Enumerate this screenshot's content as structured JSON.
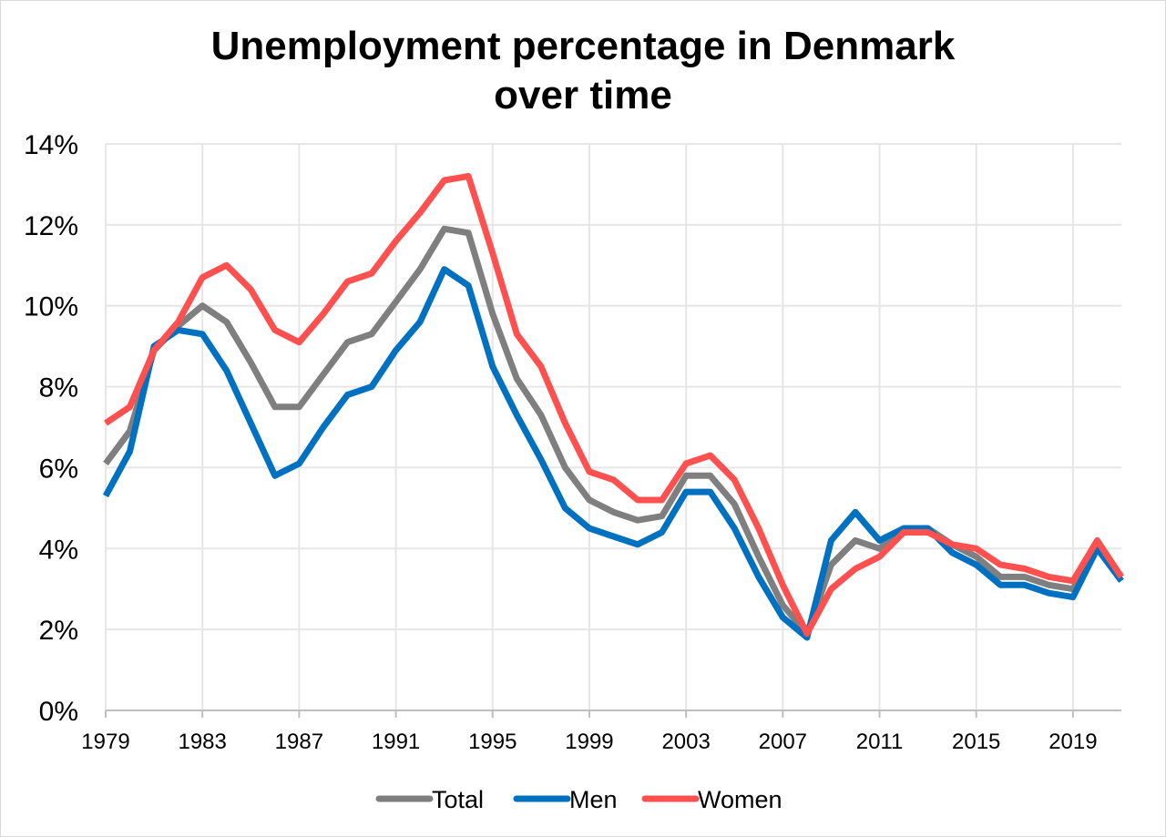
{
  "chart_data": {
    "type": "line",
    "title_lines": [
      "Unemployment percentage in Denmark",
      "over time"
    ],
    "x": [
      1979,
      1980,
      1981,
      1982,
      1983,
      1984,
      1985,
      1986,
      1987,
      1988,
      1989,
      1990,
      1991,
      1992,
      1993,
      1994,
      1995,
      1996,
      1997,
      1998,
      1999,
      2000,
      2001,
      2002,
      2003,
      2004,
      2005,
      2006,
      2007,
      2008,
      2009,
      2010,
      2011,
      2012,
      2013,
      2014,
      2015,
      2016,
      2017,
      2018,
      2019,
      2020,
      2021
    ],
    "xlim": [
      1979,
      2021
    ],
    "x_tick_labels": [
      "1979",
      "1983",
      "1987",
      "1991",
      "1995",
      "1999",
      "2003",
      "2007",
      "2011",
      "2015",
      "2019"
    ],
    "y_tick_labels": [
      "0%",
      "2%",
      "4%",
      "6%",
      "8%",
      "10%",
      "12%",
      "14%"
    ],
    "ylim": [
      0,
      14
    ],
    "grid": true,
    "legend_position": "bottom",
    "series": [
      {
        "name": "Total",
        "color": "#7f7f7f",
        "values": [
          6.1,
          6.9,
          8.9,
          9.5,
          10.0,
          9.6,
          8.6,
          7.5,
          7.5,
          8.3,
          9.1,
          9.3,
          10.1,
          10.9,
          11.9,
          11.8,
          9.8,
          8.2,
          7.3,
          6.0,
          5.2,
          4.9,
          4.7,
          4.8,
          5.8,
          5.8,
          5.1,
          3.8,
          2.6,
          1.9,
          3.6,
          4.2,
          4.0,
          4.5,
          4.5,
          4.1,
          3.8,
          3.3,
          3.3,
          3.1,
          3.0,
          4.1,
          3.3
        ]
      },
      {
        "name": "Men",
        "color": "#0070c0",
        "values": [
          5.3,
          6.4,
          9.0,
          9.4,
          9.3,
          8.4,
          7.1,
          5.8,
          6.1,
          7.0,
          7.8,
          8.0,
          8.9,
          9.6,
          10.9,
          10.5,
          8.5,
          7.3,
          6.2,
          5.0,
          4.5,
          4.3,
          4.1,
          4.4,
          5.4,
          5.4,
          4.5,
          3.3,
          2.3,
          1.8,
          4.2,
          4.9,
          4.2,
          4.5,
          4.5,
          3.9,
          3.6,
          3.1,
          3.1,
          2.9,
          2.8,
          4.0,
          3.2
        ]
      },
      {
        "name": "Women",
        "color": "#ff5050",
        "values": [
          7.1,
          7.5,
          8.9,
          9.6,
          10.7,
          11.0,
          10.4,
          9.4,
          9.1,
          9.8,
          10.6,
          10.8,
          11.6,
          12.3,
          13.1,
          13.2,
          11.3,
          9.3,
          8.5,
          7.1,
          5.9,
          5.7,
          5.2,
          5.2,
          6.1,
          6.3,
          5.7,
          4.5,
          3.1,
          1.9,
          3.0,
          3.5,
          3.8,
          4.4,
          4.4,
          4.1,
          4.0,
          3.6,
          3.5,
          3.3,
          3.2,
          4.2,
          3.3
        ]
      }
    ]
  }
}
